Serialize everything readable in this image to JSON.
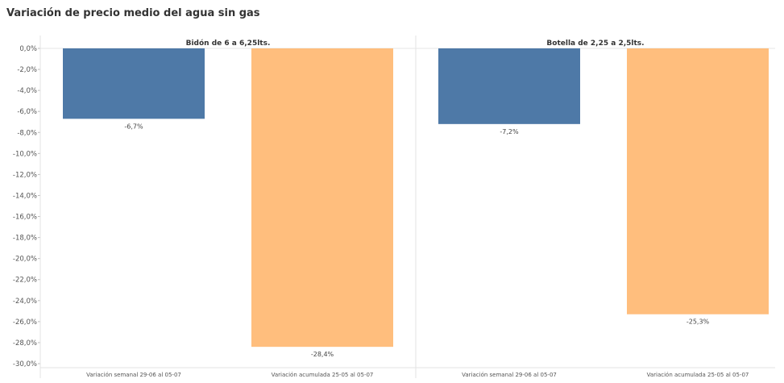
{
  "title": "Variación de precio medio del agua sin gas",
  "colors": {
    "semanal": "#4e79a7",
    "acumulada": "#ffbe7d"
  },
  "chart_data": {
    "type": "bar",
    "ylim": [
      -30,
      0
    ],
    "yticks": [
      "0,0%",
      "-2,0%",
      "-4,0%",
      "-6,0%",
      "-8,0%",
      "-10,0%",
      "-12,0%",
      "-14,0%",
      "-16,0%",
      "-18,0%",
      "-20,0%",
      "-22,0%",
      "-24,0%",
      "-26,0%",
      "-28,0%",
      "-30,0%"
    ],
    "grid": false,
    "panels": [
      {
        "title": "Bidón de 6 a 6,25lts.",
        "categories": [
          "Variación semanal 29-06 al 05-07",
          "Variación acumulada 25-05 al 05-07"
        ],
        "values": [
          -6.7,
          -28.4
        ],
        "labels": [
          "-6,7%",
          "-28,4%"
        ]
      },
      {
        "title": "Botella de 2,25 a 2,5lts.",
        "categories": [
          "Variación semanal 29-06 al 05-07",
          "Variación acumulada 25-05 al 05-07"
        ],
        "values": [
          -7.2,
          -25.3
        ],
        "labels": [
          "-7,2%",
          "-25,3%"
        ]
      }
    ]
  }
}
